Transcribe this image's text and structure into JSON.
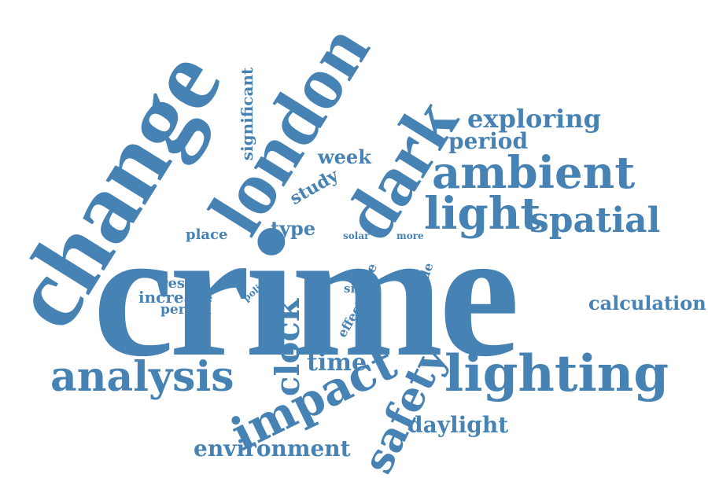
{
  "words": {
    "crime": "crime",
    "change": "change",
    "london": "london",
    "dark": "dark",
    "ambient": "ambient",
    "light": "light",
    "spatial": "spatial",
    "lighting": "lighting",
    "analysis": "analysis",
    "impact": "impact",
    "safety": "safety",
    "clock": "clock",
    "exploring": "exploring",
    "period": "period",
    "calculation": "calculation",
    "daylight": "daylight",
    "environment": "environment",
    "time": "time",
    "significant": "significant",
    "week": "week",
    "study": "study",
    "type": "type",
    "place": "place",
    "solar": "solar",
    "more": "more",
    "result": "result",
    "increase": "increase",
    "person": "person",
    "police": "police",
    "rate": "rate",
    "side": "side",
    "effect": "effect",
    "altitude": "altitude"
  },
  "colors": {
    "word": "#4682b4",
    "background": "#ffffff"
  }
}
